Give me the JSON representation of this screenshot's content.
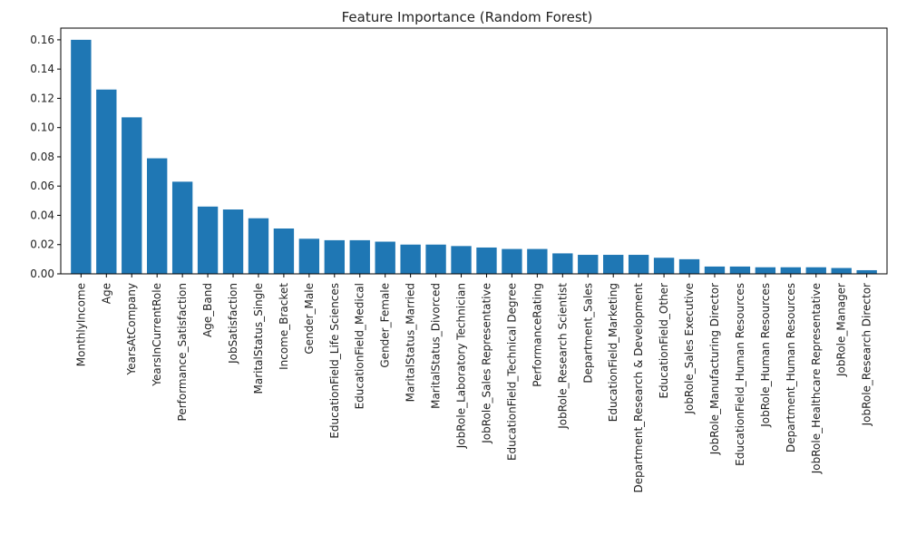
{
  "chart_data": {
    "type": "bar",
    "title": "Feature Importance (Random Forest)",
    "xlabel": "",
    "ylabel": "",
    "ylim": [
      0,
      0.168
    ],
    "yticks": [
      0.0,
      0.02,
      0.04,
      0.06,
      0.08,
      0.1,
      0.12,
      0.14,
      0.16
    ],
    "ytick_labels": [
      "0.00",
      "0.02",
      "0.04",
      "0.06",
      "0.08",
      "0.10",
      "0.12",
      "0.14",
      "0.16"
    ],
    "grid": false,
    "bar_color": "#1f77b4",
    "categories": [
      "MonthlyIncome",
      "Age",
      "YearsAtCompany",
      "YearsInCurrentRole",
      "Performance_Satisfaction",
      "Age_Band",
      "JobSatisfaction",
      "MaritalStatus_Single",
      "Income_Bracket",
      "Gender_Male",
      "EducationField_Life Sciences",
      "EducationField_Medical",
      "Gender_Female",
      "MaritalStatus_Married",
      "MaritalStatus_Divorced",
      "JobRole_Laboratory Technician",
      "JobRole_Sales Representative",
      "EducationField_Technical Degree",
      "PerformanceRating",
      "JobRole_Research Scientist",
      "Department_Sales",
      "EducationField_Marketing",
      "Department_Research & Development",
      "EducationField_Other",
      "JobRole_Sales Executive",
      "JobRole_Manufacturing Director",
      "EducationField_Human Resources",
      "JobRole_Human Resources",
      "Department_Human Resources",
      "JobRole_Healthcare Representative",
      "JobRole_Manager",
      "JobRole_Research Director"
    ],
    "values": [
      0.16,
      0.126,
      0.107,
      0.079,
      0.063,
      0.046,
      0.044,
      0.038,
      0.031,
      0.024,
      0.023,
      0.023,
      0.022,
      0.02,
      0.02,
      0.019,
      0.018,
      0.017,
      0.017,
      0.014,
      0.013,
      0.013,
      0.013,
      0.011,
      0.01,
      0.005,
      0.005,
      0.0045,
      0.0045,
      0.0045,
      0.004,
      0.0025
    ]
  }
}
